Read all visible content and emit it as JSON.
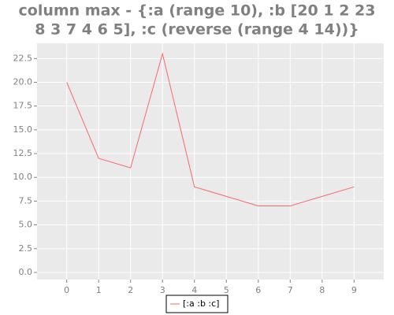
{
  "chart_data": {
    "type": "line",
    "title": [
      "column max - {:a (range 10), :b [20 1 2 23",
      "8 3 7 4 6 5], :c (reverse (range 4 14))}"
    ],
    "x": [
      0,
      1,
      2,
      3,
      4,
      5,
      6,
      7,
      8,
      9
    ],
    "series": [
      {
        "name": "[:a :b :c]",
        "color": "#f8696b",
        "values": [
          20,
          12,
          11,
          23,
          9,
          8,
          7,
          7,
          8,
          9
        ]
      }
    ],
    "xlim": [
      -0.93,
      9.93
    ],
    "xticks": [
      0,
      1,
      2,
      3,
      4,
      5,
      6,
      7,
      8,
      9
    ],
    "ylim": [
      -0.75,
      24.1
    ],
    "yticks": [
      {
        "value": 0,
        "label": "0.0"
      },
      2.5,
      {
        "value": 5,
        "label": "5.0"
      },
      7.5,
      {
        "value": 10,
        "label": "10.0"
      },
      12.5,
      {
        "value": 15,
        "label": "15.0"
      },
      17.5,
      {
        "value": 20,
        "label": "20.0"
      },
      22.5
    ],
    "grid": true
  }
}
